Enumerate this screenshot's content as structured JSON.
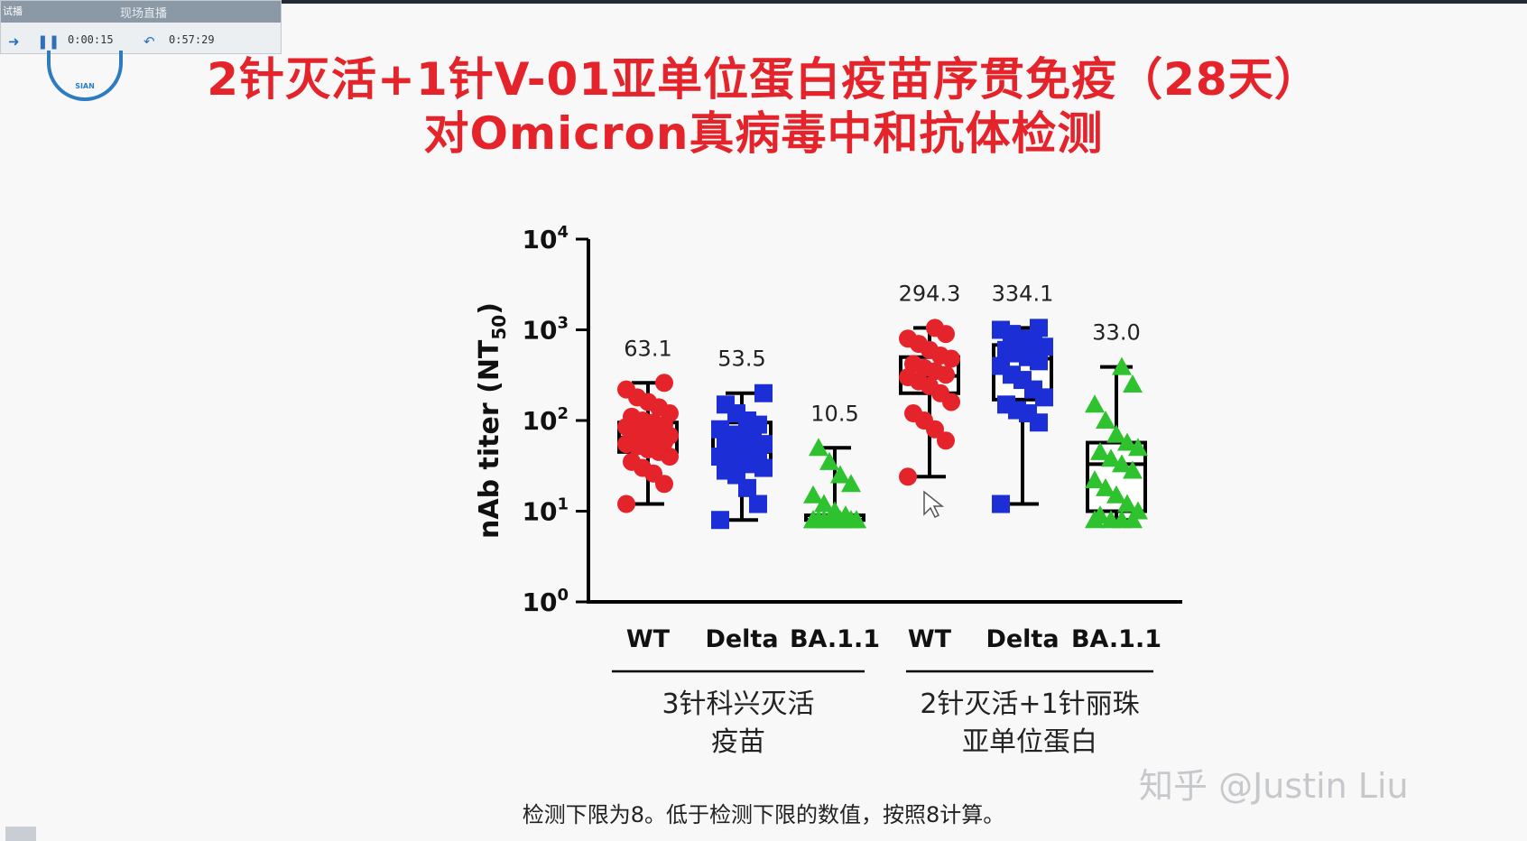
{
  "player": {
    "tag": "试播",
    "recording": "现场直播",
    "elapsed": "0:00:15",
    "total": "0:57:29"
  },
  "logo_text": "SIAN",
  "slide": {
    "title_line1": "2针灭活+1针V-01亚单位蛋白疫苗序贯免疫（28天）",
    "title_line2": "对Omicron真病毒中和抗体检测",
    "footnote": "检测下限为8。低于检测下限的数值，按照8计算。",
    "watermark": "知乎 @Justin Liu"
  },
  "colors": {
    "title": "#e4232b",
    "WT": "#e4232b",
    "Delta": "#1c2fd6",
    "BA.1.1": "#2fc22f"
  },
  "chart_data": {
    "type": "box",
    "ylabel": "nAb titer (NT50)",
    "yscale": "log",
    "ylim": [
      1,
      10000
    ],
    "yticks": [
      {
        "base": "10",
        "exp": "0"
      },
      {
        "base": "10",
        "exp": "1"
      },
      {
        "base": "10",
        "exp": "2"
      },
      {
        "base": "10",
        "exp": "3"
      },
      {
        "base": "10",
        "exp": "4"
      }
    ],
    "groups": [
      {
        "label_line1": "3针科兴灭活",
        "label_line2": "疫苗"
      },
      {
        "label_line1": "2针灭活+1针丽珠",
        "label_line2": "亚单位蛋白"
      }
    ],
    "boxes": [
      {
        "variant": "WT",
        "group": 0,
        "gmt_label": "63.1",
        "min": 12,
        "q1": 45,
        "median": 65,
        "q3": 95,
        "max": 260,
        "marker": "circle",
        "points": [
          12,
          20,
          26,
          30,
          35,
          40,
          45,
          48,
          52,
          55,
          58,
          60,
          62,
          65,
          68,
          70,
          75,
          80,
          85,
          90,
          95,
          100,
          110,
          120,
          140,
          160,
          180,
          220,
          260
        ]
      },
      {
        "variant": "Delta",
        "group": 0,
        "gmt_label": "53.5",
        "min": 8,
        "q1": 35,
        "median": 45,
        "q3": 95,
        "max": 200,
        "marker": "square",
        "points": [
          8,
          12,
          18,
          25,
          28,
          30,
          33,
          35,
          38,
          40,
          42,
          45,
          48,
          52,
          55,
          60,
          65,
          70,
          80,
          90,
          100,
          120,
          150,
          200
        ]
      },
      {
        "variant": "BA.1.1",
        "group": 0,
        "gmt_label": "10.5",
        "min": 8,
        "q1": 8,
        "median": 8,
        "q3": 9,
        "max": 50,
        "marker": "triangle",
        "points": [
          8,
          8,
          8,
          8,
          8,
          8,
          8,
          8,
          8,
          8,
          8,
          8,
          8,
          8,
          8,
          9,
          10,
          12,
          15,
          20,
          25,
          35,
          50
        ]
      },
      {
        "variant": "WT",
        "group": 1,
        "gmt_label": "294.3",
        "min": 24,
        "q1": 200,
        "median": 310,
        "q3": 500,
        "max": 1050,
        "marker": "circle",
        "points": [
          24,
          60,
          80,
          100,
          120,
          160,
          200,
          240,
          270,
          300,
          320,
          350,
          380,
          420,
          480,
          520,
          600,
          700,
          800,
          900,
          1050
        ]
      },
      {
        "variant": "Delta",
        "group": 1,
        "gmt_label": "334.1",
        "min": 12,
        "q1": 170,
        "median": 480,
        "q3": 680,
        "max": 1050,
        "marker": "square",
        "points": [
          12,
          95,
          120,
          130,
          150,
          180,
          220,
          280,
          320,
          400,
          450,
          500,
          550,
          600,
          650,
          700,
          800,
          900,
          1000,
          1050
        ]
      },
      {
        "variant": "BA.1.1",
        "group": 1,
        "gmt_label": "33.0",
        "min": 8,
        "q1": 10,
        "median": 33,
        "q3": 57,
        "max": 390,
        "marker": "triangle",
        "points": [
          8,
          8,
          8,
          8,
          9,
          10,
          12,
          15,
          18,
          22,
          28,
          33,
          38,
          45,
          50,
          57,
          70,
          100,
          150,
          250,
          390
        ]
      }
    ]
  }
}
